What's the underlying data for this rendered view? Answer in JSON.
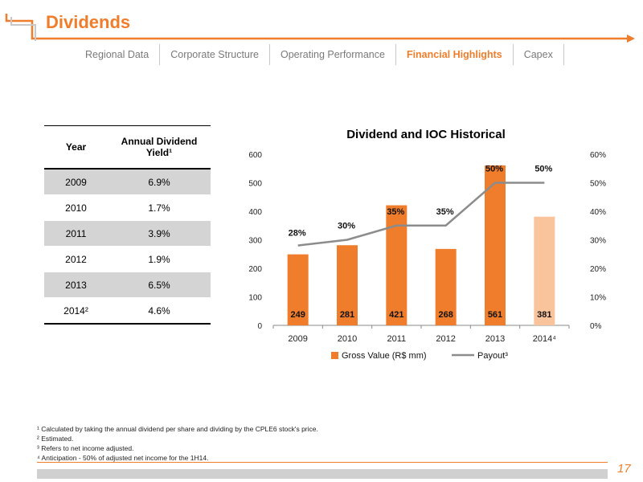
{
  "header": {
    "title": "Dividends",
    "accent_color": "#f07d2b"
  },
  "nav": {
    "items": [
      {
        "label": "Regional Data",
        "active": false
      },
      {
        "label": "Corporate Structure",
        "active": false
      },
      {
        "label": "Operating Performance",
        "active": false
      },
      {
        "label": "Financial Highlights",
        "active": true
      },
      {
        "label": "Capex",
        "active": false
      }
    ]
  },
  "yield_table": {
    "headers": [
      "Year",
      "Annual Dividend Yield¹"
    ],
    "rows": [
      {
        "year": "2009",
        "yield": "6.9%"
      },
      {
        "year": "2010",
        "yield": "1.7%"
      },
      {
        "year": "2011",
        "yield": "3.9%"
      },
      {
        "year": "2012",
        "yield": "1.9%"
      },
      {
        "year": "2013",
        "yield": "6.5%"
      },
      {
        "year": "2014²",
        "yield": "4.6%"
      }
    ]
  },
  "chart_data": {
    "type": "bar",
    "title": "Dividend and IOC Historical",
    "categories": [
      "2009",
      "2010",
      "2011",
      "2012",
      "2013",
      "2014⁴"
    ],
    "series": [
      {
        "name": "Gross Value (R$ mm)",
        "type": "bar",
        "axis": "left",
        "values": [
          249,
          281,
          421,
          268,
          561,
          381
        ],
        "color": "#f07d2b",
        "last_color": "#f9c49c"
      },
      {
        "name": "Payout³",
        "type": "line",
        "axis": "right",
        "values": [
          28,
          30,
          35,
          35,
          50,
          50
        ],
        "labels": [
          "28%",
          "30%",
          "35%",
          "35%",
          "50%",
          "50%"
        ],
        "color": "#8c8c8c"
      }
    ],
    "y_left": {
      "ylim": [
        0,
        600
      ],
      "ticks": [
        "0",
        "100",
        "200",
        "300",
        "400",
        "500",
        "600"
      ]
    },
    "y_right": {
      "ylim": [
        0,
        60
      ],
      "ticks": [
        "0%",
        "10%",
        "20%",
        "30%",
        "40%",
        "50%",
        "60%"
      ]
    },
    "legend": "bottom"
  },
  "footnotes": [
    "¹ Calculated by taking the annual dividend per share and dividing by the CPLE6 stock's price.",
    "² Estimated.",
    "³ Refers to net income adjusted.",
    "⁴ Anticipation - 50% of adjusted net income for the 1H14."
  ],
  "page_number": "17"
}
